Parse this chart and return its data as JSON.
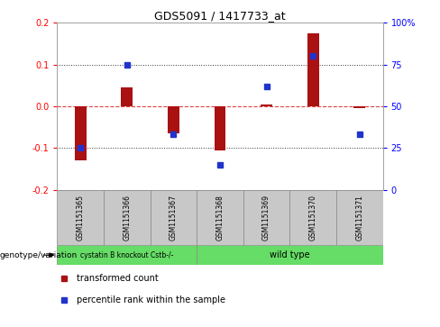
{
  "title": "GDS5091 / 1417733_at",
  "samples": [
    "GSM1151365",
    "GSM1151366",
    "GSM1151367",
    "GSM1151368",
    "GSM1151369",
    "GSM1151370",
    "GSM1151371"
  ],
  "bar_values": [
    -0.13,
    0.045,
    -0.065,
    -0.105,
    0.005,
    0.175,
    -0.005
  ],
  "dot_percentiles": [
    25,
    75,
    33,
    15,
    62,
    80,
    33
  ],
  "ylim": [
    -0.2,
    0.2
  ],
  "yticks_left": [
    -0.2,
    -0.1,
    0.0,
    0.1,
    0.2
  ],
  "yticks_right": [
    0,
    25,
    50,
    75,
    100
  ],
  "bar_color": "#AA1111",
  "dot_color": "#2233CC",
  "zero_line_color": "#DD4444",
  "grid_line_color": "#333333",
  "background_color": "#FFFFFF",
  "plot_bg_color": "#FFFFFF",
  "group1_label": "cystatin B knockout Cstb-/-",
  "group2_label": "wild type",
  "group_color": "#66DD66",
  "sample_box_color": "#C8C8C8",
  "genotype_label": "genotype/variation",
  "legend1": "transformed count",
  "legend2": "percentile rank within the sample",
  "bar_width": 0.25
}
